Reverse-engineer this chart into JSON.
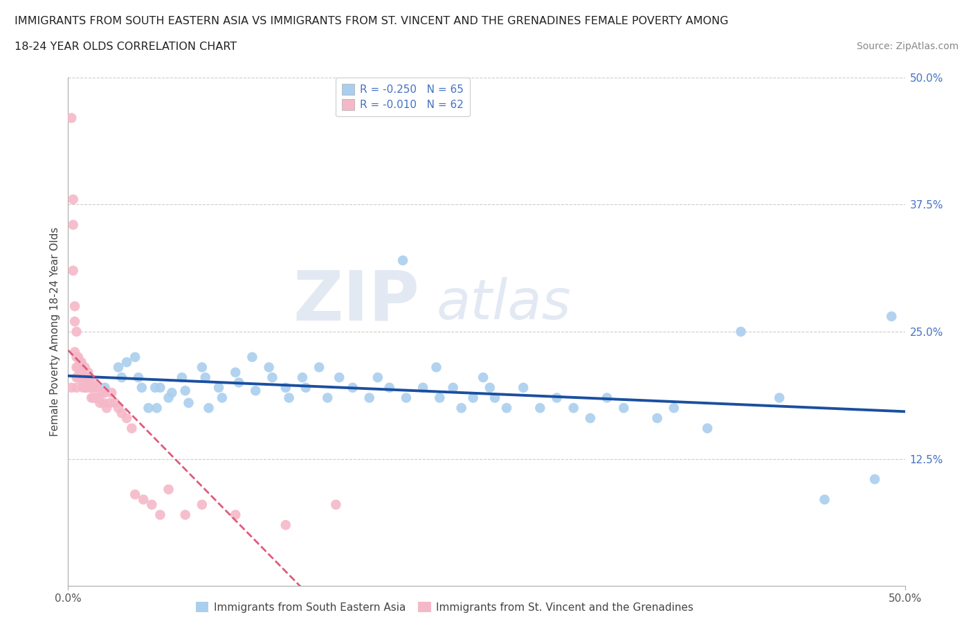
{
  "title_line1": "IMMIGRANTS FROM SOUTH EASTERN ASIA VS IMMIGRANTS FROM ST. VINCENT AND THE GRENADINES FEMALE POVERTY AMONG",
  "title_line2": "18-24 YEAR OLDS CORRELATION CHART",
  "source": "Source: ZipAtlas.com",
  "ylabel": "Female Poverty Among 18-24 Year Olds",
  "xlim": [
    0.0,
    0.5
  ],
  "ylim": [
    0.0,
    0.5
  ],
  "blue_color": "#aacfee",
  "pink_color": "#f5b8c8",
  "blue_line_color": "#1a4fa0",
  "pink_line_color": "#e05a7a",
  "legend_label_blue": "R = -0.250   N = 65",
  "legend_label_pink": "R = -0.010   N = 62",
  "legend_label_blue_bottom": "Immigrants from South Eastern Asia",
  "legend_label_pink_bottom": "Immigrants from St. Vincent and the Grenadines",
  "watermark_zip": "ZIP",
  "watermark_atlas": "atlas",
  "blue_x": [
    0.022,
    0.03,
    0.032,
    0.035,
    0.04,
    0.042,
    0.044,
    0.048,
    0.052,
    0.053,
    0.055,
    0.06,
    0.062,
    0.068,
    0.07,
    0.072,
    0.08,
    0.082,
    0.084,
    0.09,
    0.092,
    0.1,
    0.102,
    0.11,
    0.112,
    0.12,
    0.122,
    0.13,
    0.132,
    0.14,
    0.142,
    0.15,
    0.155,
    0.162,
    0.17,
    0.18,
    0.185,
    0.192,
    0.2,
    0.202,
    0.212,
    0.22,
    0.222,
    0.23,
    0.235,
    0.242,
    0.248,
    0.252,
    0.255,
    0.262,
    0.272,
    0.282,
    0.292,
    0.302,
    0.312,
    0.322,
    0.332,
    0.352,
    0.362,
    0.382,
    0.402,
    0.425,
    0.452,
    0.482,
    0.492
  ],
  "blue_y": [
    0.195,
    0.215,
    0.205,
    0.22,
    0.225,
    0.205,
    0.195,
    0.175,
    0.195,
    0.175,
    0.195,
    0.185,
    0.19,
    0.205,
    0.192,
    0.18,
    0.215,
    0.205,
    0.175,
    0.195,
    0.185,
    0.21,
    0.2,
    0.225,
    0.192,
    0.215,
    0.205,
    0.195,
    0.185,
    0.205,
    0.195,
    0.215,
    0.185,
    0.205,
    0.195,
    0.185,
    0.205,
    0.195,
    0.32,
    0.185,
    0.195,
    0.215,
    0.185,
    0.195,
    0.175,
    0.185,
    0.205,
    0.195,
    0.185,
    0.175,
    0.195,
    0.175,
    0.185,
    0.175,
    0.165,
    0.185,
    0.175,
    0.165,
    0.175,
    0.155,
    0.25,
    0.185,
    0.085,
    0.105,
    0.265
  ],
  "pink_x": [
    0.002,
    0.002,
    0.003,
    0.003,
    0.003,
    0.004,
    0.004,
    0.004,
    0.005,
    0.005,
    0.005,
    0.005,
    0.005,
    0.006,
    0.006,
    0.006,
    0.007,
    0.007,
    0.008,
    0.008,
    0.008,
    0.009,
    0.009,
    0.01,
    0.01,
    0.01,
    0.011,
    0.011,
    0.012,
    0.012,
    0.013,
    0.013,
    0.014,
    0.014,
    0.015,
    0.015,
    0.016,
    0.016,
    0.017,
    0.018,
    0.019,
    0.02,
    0.021,
    0.022,
    0.023,
    0.025,
    0.026,
    0.028,
    0.03,
    0.032,
    0.035,
    0.038,
    0.04,
    0.045,
    0.05,
    0.055,
    0.06,
    0.07,
    0.08,
    0.1,
    0.13,
    0.16
  ],
  "pink_y": [
    0.46,
    0.195,
    0.38,
    0.355,
    0.31,
    0.275,
    0.26,
    0.23,
    0.25,
    0.225,
    0.215,
    0.205,
    0.195,
    0.225,
    0.215,
    0.205,
    0.22,
    0.21,
    0.215,
    0.22,
    0.205,
    0.2,
    0.195,
    0.215,
    0.205,
    0.195,
    0.205,
    0.195,
    0.21,
    0.205,
    0.195,
    0.2,
    0.185,
    0.195,
    0.2,
    0.185,
    0.195,
    0.185,
    0.195,
    0.185,
    0.18,
    0.19,
    0.18,
    0.19,
    0.175,
    0.18,
    0.19,
    0.18,
    0.175,
    0.17,
    0.165,
    0.155,
    0.09,
    0.085,
    0.08,
    0.07,
    0.095,
    0.07,
    0.08,
    0.07,
    0.06,
    0.08
  ]
}
